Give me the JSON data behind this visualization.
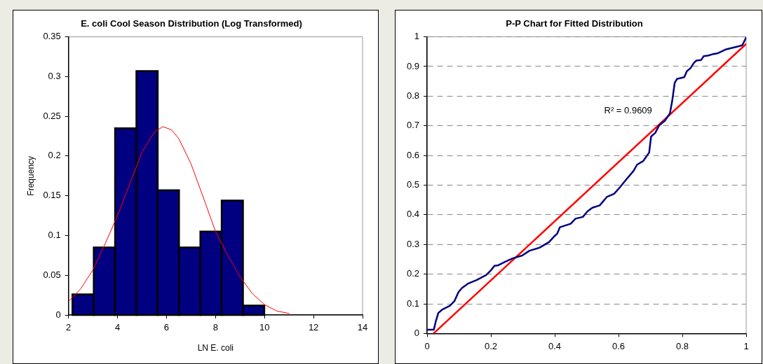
{
  "chart_data": [
    {
      "type": "histogram",
      "title": "E. coli Cool Season Distribution (Log Transformed)",
      "xlabel": "LN E. coli",
      "ylabel": "Frequency",
      "xlim": [
        2,
        14
      ],
      "xticks": [
        2,
        4,
        6,
        8,
        10,
        12,
        14
      ],
      "ylim": [
        0,
        0.35
      ],
      "yticks": [
        0,
        0.05,
        0.1,
        0.15,
        0.2,
        0.25,
        0.3,
        0.35
      ],
      "series": [
        {
          "type": "histogram",
          "color": "#000080",
          "bins": [
            2.16,
            3.03,
            3.9,
            4.77,
            5.64,
            6.51,
            7.38,
            8.25,
            9.12,
            9.99
          ],
          "values": [
            0.026,
            0.085,
            0.235,
            0.307,
            0.157,
            0.085,
            0.105,
            0.144,
            0.012
          ]
        },
        {
          "type": "line",
          "color": "#ff0000",
          "x": [
            2,
            2.5,
            3,
            3.5,
            4,
            4.5,
            5,
            5.5,
            5.85,
            6.2,
            6.5,
            7,
            7.5,
            8,
            8.5,
            9,
            9.5,
            10,
            10.5,
            11
          ],
          "values": [
            0.017,
            0.033,
            0.057,
            0.09,
            0.125,
            0.165,
            0.205,
            0.23,
            0.237,
            0.233,
            0.222,
            0.19,
            0.148,
            0.105,
            0.075,
            0.048,
            0.027,
            0.013,
            0.005,
            0.002
          ]
        }
      ]
    },
    {
      "type": "line",
      "title": "P-P Chart for Fitted Distribution",
      "grid": "y",
      "line_style": "solid",
      "xlim": [
        0,
        1
      ],
      "xticks": [
        0,
        0.2,
        0.4,
        0.6,
        0.8,
        1
      ],
      "ylim": [
        0,
        1
      ],
      "yticks": [
        0,
        0.1,
        0.2,
        0.3,
        0.4,
        0.5,
        0.6,
        0.7,
        0.8,
        0.9,
        1
      ],
      "annotations": [
        "R² = 0.9609"
      ],
      "series": [
        {
          "color": "#000080",
          "x": [
            0,
            0.021,
            0.027,
            0.035,
            0.048,
            0.071,
            0.086,
            0.098,
            0.109,
            0.128,
            0.155,
            0.185,
            0.2,
            0.211,
            0.223,
            0.245,
            0.268,
            0.298,
            0.321,
            0.352,
            0.382,
            0.4,
            0.408,
            0.416,
            0.45,
            0.465,
            0.488,
            0.503,
            0.518,
            0.541,
            0.564,
            0.586,
            0.602,
            0.624,
            0.647,
            0.658,
            0.677,
            0.696,
            0.702,
            0.715,
            0.727,
            0.745,
            0.761,
            0.768,
            0.776,
            0.783,
            0.806,
            0.814,
            0.826,
            0.836,
            0.844,
            0.859,
            0.867,
            0.882,
            0.897,
            0.912,
            0.935,
            0.973,
            0.988,
            1
          ],
          "values": [
            0.013,
            0.013,
            0.04,
            0.069,
            0.081,
            0.093,
            0.11,
            0.139,
            0.153,
            0.168,
            0.18,
            0.197,
            0.213,
            0.228,
            0.23,
            0.242,
            0.253,
            0.263,
            0.279,
            0.289,
            0.308,
            0.329,
            0.337,
            0.358,
            0.37,
            0.387,
            0.393,
            0.412,
            0.424,
            0.432,
            0.461,
            0.471,
            0.49,
            0.519,
            0.548,
            0.569,
            0.581,
            0.61,
            0.664,
            0.676,
            0.701,
            0.717,
            0.742,
            0.783,
            0.845,
            0.858,
            0.864,
            0.884,
            0.895,
            0.912,
            0.92,
            0.922,
            0.935,
            0.937,
            0.942,
            0.945,
            0.957,
            0.967,
            0.972,
            0.998
          ]
        },
        {
          "color": "#ff0000",
          "x": [
            0.02,
            1
          ],
          "values": [
            0,
            0.976
          ]
        }
      ]
    }
  ]
}
